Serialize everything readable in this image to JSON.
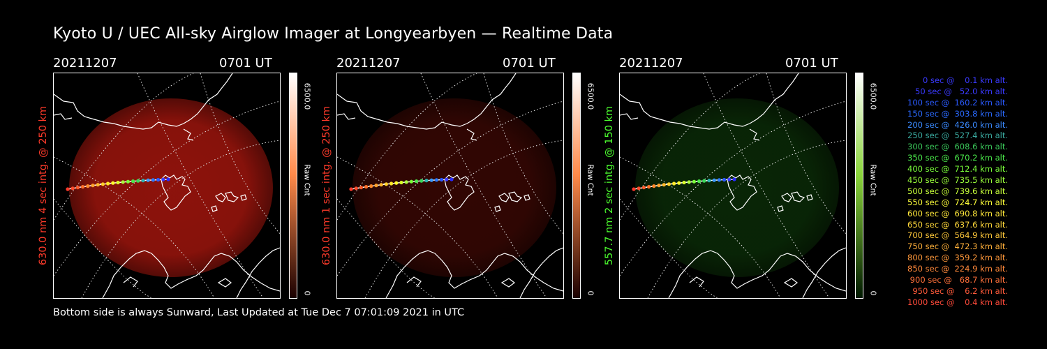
{
  "title": "Kyoto U / UEC All-sky Airglow Imager at Longyearbyen — Realtime Data",
  "footer": "Bottom side is always Sunward, Last Updated at Tue Dec  7 07:01:09 2021 in UTC",
  "panels": [
    {
      "date": "20211207",
      "time": "0701 UT",
      "side_label": "630.0 nm 4 sec intg. @ 250 km",
      "side_color": "#ff3a2a",
      "glow_color": "#c41a10",
      "glow_opacity": 0.72,
      "cbar_top": "#ffffff",
      "cbar_mid": "#ff8a4a",
      "cbar_bottom": "#1a0000",
      "cbar_max": "6500.0",
      "cbar_label": "Raw Cnt",
      "cbar_min": "0"
    },
    {
      "date": "20211207",
      "time": "0701 UT",
      "side_label": "630.0 nm 1 sec intg. @ 250 km",
      "side_color": "#ff3a2a",
      "glow_color": "#5a0c06",
      "glow_opacity": 0.55,
      "cbar_top": "#ffffff",
      "cbar_mid": "#ff8a4a",
      "cbar_bottom": "#1a0000",
      "cbar_max": "6500.0",
      "cbar_label": "Raw Cnt",
      "cbar_min": "0"
    },
    {
      "date": "20211207",
      "time": "0701 UT",
      "side_label": "557.7 nm 2 sec intg. @ 150 km",
      "side_color": "#4cff2e",
      "glow_color": "#0c3208",
      "glow_opacity": 0.75,
      "cbar_top": "#ffffff",
      "cbar_mid": "#8ad43a",
      "cbar_bottom": "#001800",
      "cbar_max": "6500.0",
      "cbar_label": "Raw Cnt",
      "cbar_min": "0"
    }
  ],
  "trajectory_colors": [
    "#2a2aff",
    "#3a3aff",
    "#2a5aff",
    "#2a7aff",
    "#3a9aff",
    "#2ab0b0",
    "#3ad85a",
    "#4ae84a",
    "#7aff3a",
    "#aaff3a",
    "#d8ff2a",
    "#ffff2a",
    "#ffe82a",
    "#ffd02a",
    "#ffb82a",
    "#ffa02a",
    "#ff882a",
    "#ff702a",
    "#ff5a2a",
    "#ff4a2a",
    "#ff3a2a"
  ],
  "legend": [
    {
      "text": "   0 sec @    0.1 km alt.",
      "color": "#3a3aff"
    },
    {
      "text": "  50 sec @   52.0 km alt.",
      "color": "#3a3aff"
    },
    {
      "text": " 100 sec @  160.2 km alt.",
      "color": "#2a5aff"
    },
    {
      "text": " 150 sec @  303.8 km alt.",
      "color": "#2a6aff"
    },
    {
      "text": " 200 sec @  426.0 km alt.",
      "color": "#3a8aff"
    },
    {
      "text": " 250 sec @  527.4 km alt.",
      "color": "#3aaaa0"
    },
    {
      "text": " 300 sec @  608.6 km alt.",
      "color": "#3ac85a"
    },
    {
      "text": " 350 sec @  670.2 km alt.",
      "color": "#4ae84a"
    },
    {
      "text": " 400 sec @  712.4 km alt.",
      "color": "#7aff3a"
    },
    {
      "text": " 450 sec @  735.5 km alt.",
      "color": "#9aff3a"
    },
    {
      "text": " 500 sec @  739.6 km alt.",
      "color": "#c8ff3a"
    },
    {
      "text": " 550 sec @  724.7 km alt.",
      "color": "#ffff3a"
    },
    {
      "text": " 600 sec @  690.8 km alt.",
      "color": "#ffe83a"
    },
    {
      "text": " 650 sec @  637.6 km alt.",
      "color": "#ffd83a"
    },
    {
      "text": " 700 sec @  564.9 km alt.",
      "color": "#ffc83a"
    },
    {
      "text": " 750 sec @  472.3 km alt.",
      "color": "#ffb03a"
    },
    {
      "text": " 800 sec @  359.2 km alt.",
      "color": "#ff983a"
    },
    {
      "text": " 850 sec @  224.9 km alt.",
      "color": "#ff883a"
    },
    {
      "text": " 900 sec @   68.7 km alt.",
      "color": "#ff703a"
    },
    {
      "text": " 950 sec @    6.2 km alt.",
      "color": "#ff5a3a"
    },
    {
      "text": "1000 sec @    0.4 km alt.",
      "color": "#ff4a3a"
    }
  ]
}
